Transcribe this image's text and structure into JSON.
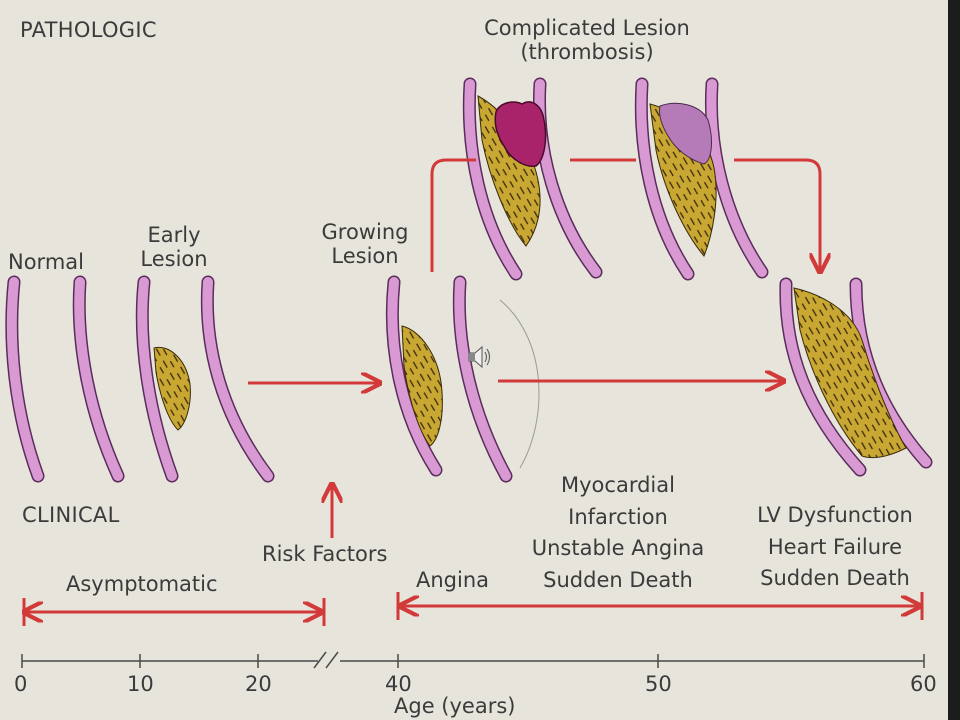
{
  "headers": {
    "pathologic": "PATHOLOGIC",
    "clinical": "CLINICAL"
  },
  "stages": {
    "normal": "Normal",
    "early_line1": "Early",
    "early_line2": "Lesion",
    "growing_line1": "Growing",
    "growing_line2": "Lesion",
    "complicated_line1": "Complicated Lesion",
    "complicated_line2": "(thrombosis)"
  },
  "clinical": {
    "risk_factors": "Risk Factors",
    "asymptomatic": "Asymptomatic",
    "angina": "Angina",
    "mid_line1": "Myocardial",
    "mid_line2": "Infarction",
    "mid_line3": "Unstable Angina",
    "mid_line4": "Sudden Death",
    "late_line1": "LV Dysfunction",
    "late_line2": "Heart Failure",
    "late_line3": "Sudden Death"
  },
  "axis": {
    "title": "Age (years)",
    "ticks": [
      "0",
      "10",
      "20",
      "40",
      "50",
      "60"
    ]
  },
  "icons": {
    "speaker": "speaker-icon"
  },
  "colors": {
    "background": "#e7e4dc",
    "arrow": "#d23a3a",
    "vessel_wall": "#d99ad4",
    "plaque": "#c9a733",
    "thrombus": "#a8236a",
    "thrombus_light": "#b57ab8",
    "text": "#3b3b3b"
  }
}
